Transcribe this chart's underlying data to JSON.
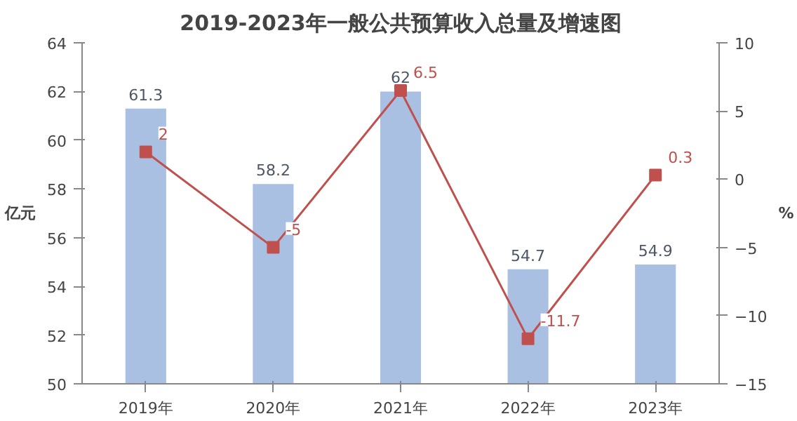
{
  "chart_data": {
    "type": "bar",
    "title": "2019-2023年一般公共预算收入总量及增速图",
    "ylabel": "亿元",
    "y2label": "%",
    "categories": [
      "2019年",
      "2020年",
      "2021年",
      "2022年",
      "2023年"
    ],
    "series": [
      {
        "color": "#a9c0e3",
        "values": [
          61.3,
          58.2,
          62,
          54.7,
          54.9
        ]
      },
      {
        "type": "line",
        "axis": "y2",
        "color": "#c0504d",
        "values": [
          2,
          -5,
          6.5,
          -11.7,
          0.3
        ]
      }
    ],
    "ylim": [
      50,
      64
    ],
    "yticks": [
      50,
      52,
      54,
      56,
      58,
      60,
      62,
      64
    ],
    "y2lim": [
      -15,
      10
    ],
    "y2ticks": [
      -15,
      -10,
      -5,
      0,
      5,
      10
    ],
    "data_labels": true,
    "marker": "square",
    "line_style": "solid",
    "grid": false
  }
}
